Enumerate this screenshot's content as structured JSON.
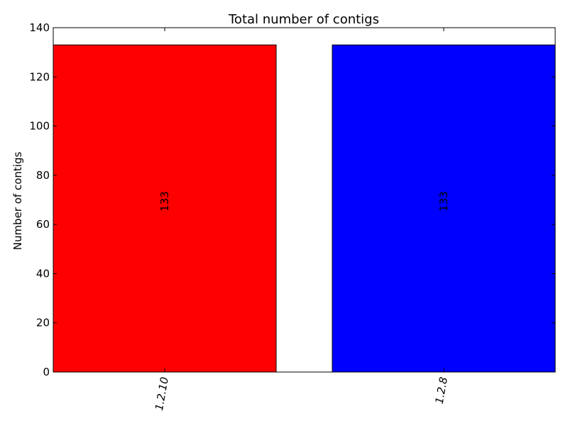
{
  "chart_data": {
    "type": "bar",
    "title": "Total number of contigs",
    "xlabel": "",
    "ylabel": "Number of contigs",
    "categories": [
      "1.2.10",
      "1.2.8"
    ],
    "values": [
      133,
      133
    ],
    "data_labels": [
      "133",
      "133"
    ],
    "colors": [
      "#ff0000",
      "#0000ff"
    ],
    "ylim": [
      0,
      140
    ],
    "yticks": [
      0,
      20,
      40,
      60,
      80,
      100,
      120,
      140
    ],
    "grid": false,
    "legend": "none"
  }
}
